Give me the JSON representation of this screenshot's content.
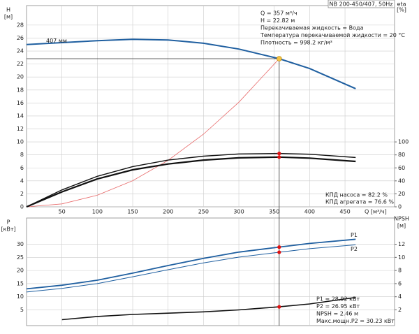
{
  "chart_data": [
    {
      "type": "line",
      "title": "NB 200-450/407, 50Hz",
      "y_label": "H",
      "y_unit": "[м]",
      "y2_label": "eta",
      "y2_unit": "[%]",
      "x_label": "Q [м³/ч]",
      "xlim": [
        0,
        520
      ],
      "xticks": [
        50,
        100,
        150,
        200,
        250,
        300,
        350,
        400,
        450
      ],
      "ylim": [
        0,
        31
      ],
      "yticks": [
        0,
        2,
        4,
        6,
        8,
        10,
        12,
        14,
        16,
        18,
        20,
        22,
        24,
        26,
        28
      ],
      "y2lim": [
        0,
        310
      ],
      "y2ticks": [
        0,
        20,
        40,
        60,
        80,
        100
      ],
      "grid": true,
      "info_lines": [
        "Q = 357 м³/ч",
        "H = 22.82 м",
        "Перекачиваемая жидкость = Вода",
        "Температура перекачиваемой жидкости = 20 °C",
        "Плотность = 998.2 кг/м³"
      ],
      "efficiency_lines": [
        "КПД насоса = 82.2 %",
        "КПД агрегата = 76.6 %"
      ],
      "operating_point": {
        "q": 357,
        "h": 22.82,
        "eta_pump": 82.2,
        "eta_unit": 76.6
      },
      "series": [
        {
          "name": "407 мм",
          "color": "#1f5fa0",
          "width": 2,
          "x": [
            0,
            50,
            100,
            150,
            200,
            250,
            300,
            357,
            400,
            465
          ],
          "values": [
            25.0,
            25.3,
            25.6,
            25.8,
            25.7,
            25.2,
            24.3,
            22.82,
            21.3,
            18.2
          ]
        },
        {
          "color": "#e86a6a",
          "width": 0.8,
          "x": [
            0,
            50,
            100,
            150,
            200,
            250,
            300,
            357
          ],
          "values": [
            0,
            0.45,
            1.79,
            4.03,
            7.16,
            11.19,
            16.11,
            22.82
          ]
        },
        {
          "color": "#111111",
          "width": 1.4,
          "axis": "y2",
          "x": [
            0,
            50,
            100,
            150,
            200,
            250,
            300,
            357,
            400,
            465
          ],
          "values": [
            0,
            26,
            47,
            62,
            72,
            78,
            81.5,
            82.2,
            81,
            76
          ]
        },
        {
          "color": "#111111",
          "width": 2.2,
          "axis": "y2",
          "x": [
            0,
            50,
            100,
            150,
            200,
            250,
            300,
            357,
            400,
            465
          ],
          "values": [
            0,
            23,
            43,
            57,
            66,
            72,
            75.5,
            76.6,
            75,
            70
          ]
        }
      ]
    },
    {
      "type": "line",
      "y_label": "P",
      "y_unit": "[кВт]",
      "y2_label": "NPSH",
      "y2_unit": "[м]",
      "ylim": [
        -1,
        40
      ],
      "yticks": [
        5,
        10,
        15,
        20,
        25,
        30
      ],
      "y2lim": [
        -0.4,
        16
      ],
      "y2ticks": [
        2,
        4,
        6,
        8,
        10,
        12
      ],
      "grid": true,
      "info_lines": [
        "P1 = 28.92 кВт",
        "P2 = 26.95 кВт",
        "NPSH = 2.46 м",
        "Макс.мощн.P2 = 30.23 кВт"
      ],
      "operating_point": {
        "p1": 28.92,
        "p2": 26.95,
        "npsh": 2.46
      },
      "series": [
        {
          "name": "P1",
          "color": "#1f5fa0",
          "width": 1.8,
          "x": [
            0,
            50,
            100,
            150,
            200,
            250,
            300,
            357,
            400,
            465
          ],
          "values": [
            13.0,
            14.4,
            16.3,
            19.0,
            21.9,
            24.6,
            27.0,
            28.92,
            30.3,
            31.9
          ]
        },
        {
          "name": "P2",
          "color": "#1f5fa0",
          "width": 1,
          "x": [
            0,
            50,
            100,
            150,
            200,
            250,
            300,
            357,
            400,
            465
          ],
          "values": [
            11.8,
            13.2,
            15.0,
            17.6,
            20.3,
            22.9,
            25.1,
            26.95,
            28.3,
            29.8
          ]
        },
        {
          "color": "#111111",
          "width": 1.6,
          "axis": "y2",
          "x": [
            50,
            100,
            150,
            200,
            250,
            300,
            357,
            400,
            465
          ],
          "values": [
            0.5,
            1.0,
            1.3,
            1.5,
            1.7,
            2.0,
            2.46,
            2.9,
            3.9
          ]
        }
      ]
    }
  ]
}
